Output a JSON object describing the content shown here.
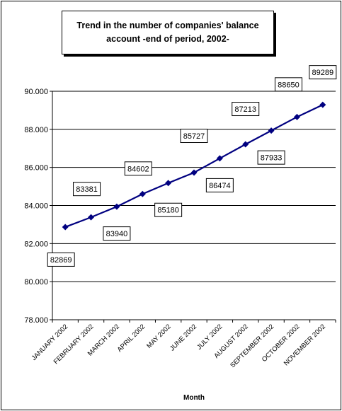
{
  "chart_data": {
    "type": "line",
    "title": "Trend in the number of companies' balance account -end of period, 2002-",
    "xlabel": "Month",
    "ylabel": "",
    "categories": [
      "JANUARY 2002",
      "FEBRUARY 2002",
      "MARCH 2002",
      "APRIL 2002",
      "MAY 2002",
      "JUNE 2002",
      "JULY 2002",
      "AUGUST 2002",
      "SEPTEMBER 2002",
      "OCTOBER 2002",
      "NOVEMBER 2002"
    ],
    "series": [
      {
        "values": [
          82869,
          83381,
          83940,
          84602,
          85180,
          85727,
          86474,
          87213,
          87933,
          88650,
          89289
        ],
        "data_labels": [
          "82869",
          "83381",
          "83940",
          "84602",
          "85180",
          "85727",
          "86474",
          "87213",
          "87933",
          "88650",
          "89289"
        ],
        "color": "#000080"
      }
    ],
    "ylim": [
      78000,
      90000
    ],
    "yticks": [
      78000,
      80000,
      82000,
      84000,
      86000,
      88000,
      90000
    ],
    "ytick_labels": [
      "78.000",
      "80.000",
      "82.000",
      "84.000",
      "86.000",
      "88.000",
      "90.000"
    ],
    "grid": true,
    "legend": "none"
  }
}
